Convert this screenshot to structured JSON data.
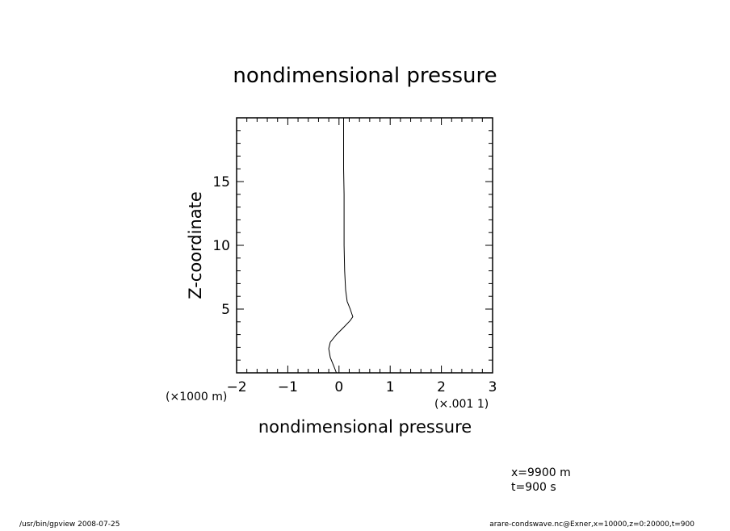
{
  "chart_data": {
    "type": "line",
    "title": "nondimensional pressure",
    "xlabel": "nondimensional pressure",
    "ylabel": "Z-coordinate",
    "x_scale_note": "(x.001 1)",
    "y_scale_note": "(x1000 m)",
    "xlim": [
      -2,
      3
    ],
    "ylim": [
      0,
      20
    ],
    "x_ticks": [
      "-2",
      "-1",
      "0",
      "1",
      "2",
      "3"
    ],
    "y_ticks": [
      "5",
      "10",
      "15"
    ],
    "grid": false,
    "series": [
      {
        "points": [
          [
            -0.05,
            0.0
          ],
          [
            -0.1,
            0.5
          ],
          [
            -0.17,
            1.2
          ],
          [
            -0.2,
            1.9
          ],
          [
            -0.17,
            2.4
          ],
          [
            -0.05,
            3.0
          ],
          [
            0.1,
            3.6
          ],
          [
            0.22,
            4.1
          ],
          [
            0.27,
            4.4
          ],
          [
            0.22,
            5.0
          ],
          [
            0.16,
            5.6
          ],
          [
            0.13,
            6.5
          ],
          [
            0.11,
            8.0
          ],
          [
            0.1,
            10.0
          ],
          [
            0.1,
            12.0
          ],
          [
            0.1,
            14.0
          ],
          [
            0.09,
            16.0
          ],
          [
            0.09,
            18.0
          ],
          [
            0.09,
            20.0
          ]
        ]
      }
    ]
  },
  "annotations": {
    "position": "x=9900  m",
    "time": "t=900  s"
  },
  "footer": {
    "left": "/usr/bin/gpview  2008-07-25",
    "right": "arare-condswave.nc@Exner,x=10000,z=0:20000,t=900"
  }
}
